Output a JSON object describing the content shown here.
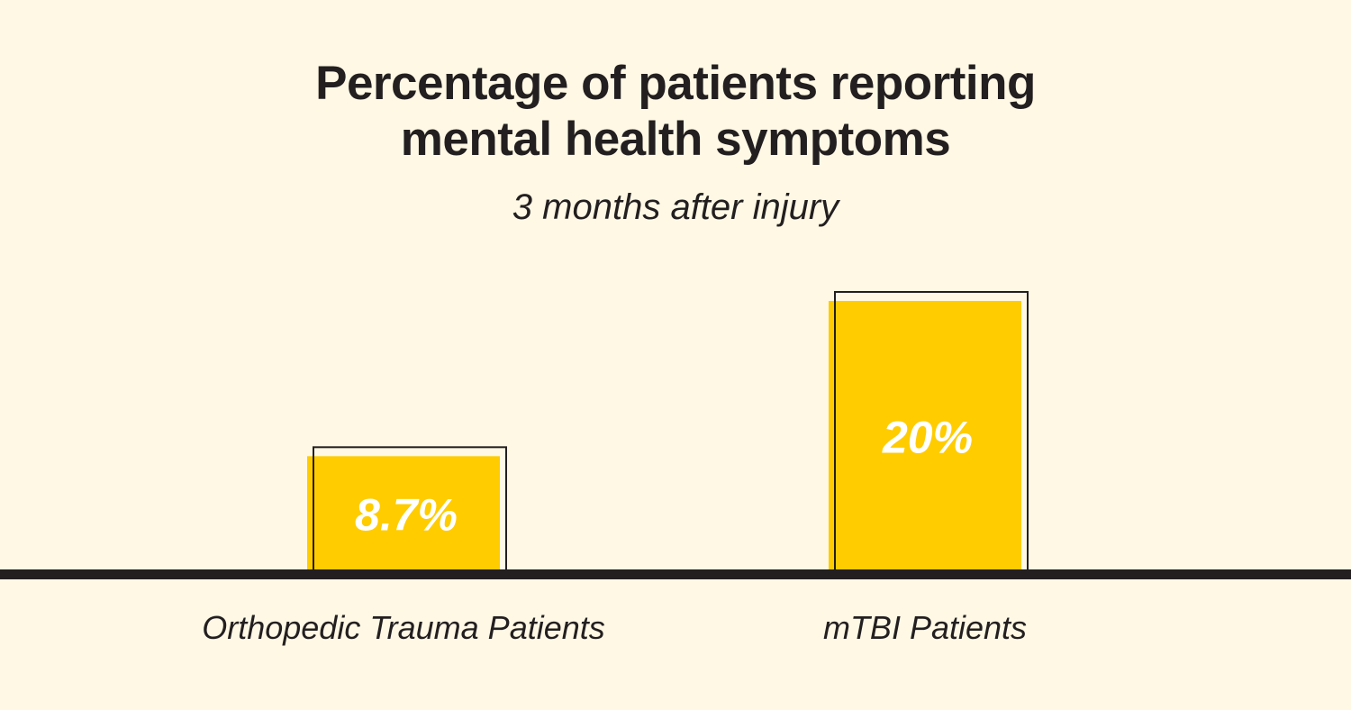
{
  "title_lines": [
    "Percentage of patients reporting",
    "mental health symptoms"
  ],
  "subtitle": "3 months after injury",
  "colors": {
    "background": "#fef8e5",
    "bar_fill": "#ffcc00",
    "outline": "#231f20",
    "value_label": "#ffffff",
    "baseline": "#231f20"
  },
  "chart_data": {
    "type": "bar",
    "title": "Percentage of patients reporting mental health symptoms",
    "subtitle": "3 months after injury",
    "categories": [
      "Orthopedic Trauma Patients",
      "mTBI Patients"
    ],
    "values": [
      8.7,
      20
    ],
    "value_labels": [
      "8.7%",
      "20%"
    ],
    "unit": "%",
    "ylim": [
      0,
      20
    ],
    "grid": false,
    "legend": "none"
  }
}
